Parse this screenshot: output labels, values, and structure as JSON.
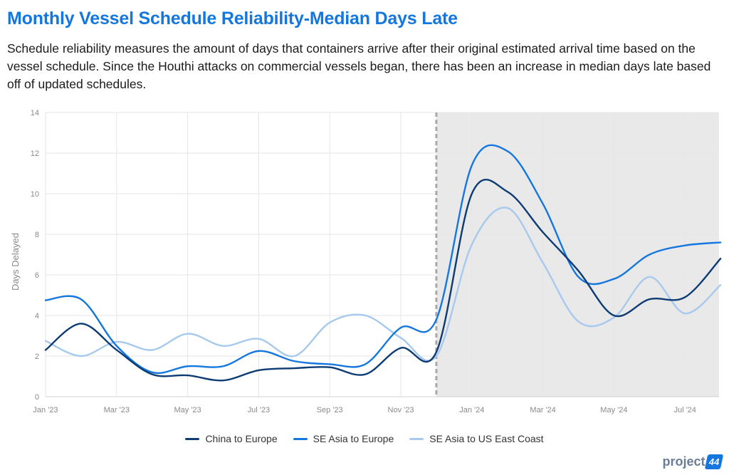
{
  "header": {
    "title": "Monthly Vessel Schedule Reliability-Median Days Late",
    "subtitle": "Schedule reliability measures the amount of days that containers arrive after their original estimated arrival time based on the vessel schedule. Since the Houthi attacks on commercial vessels began, there has been an increase in median days late based off of updated schedules."
  },
  "logo": {
    "text": "project",
    "badge": "44"
  },
  "chart_data": {
    "type": "line",
    "ylabel": "Days Delayed",
    "xlabel": "",
    "ylim": [
      0,
      14
    ],
    "yticks": [
      0,
      2,
      4,
      6,
      8,
      10,
      12,
      14
    ],
    "xticks": [
      "Jan '23",
      "Mar '23",
      "May '23",
      "Jul '23",
      "Sep '23",
      "Nov '23",
      "Jan '24",
      "Mar '24",
      "May '24",
      "Jul '24"
    ],
    "x": [
      "2023-01",
      "2023-02",
      "2023-03",
      "2023-04",
      "2023-05",
      "2023-06",
      "2023-07",
      "2023-08",
      "2023-09",
      "2023-10",
      "2023-11",
      "2023-12",
      "2024-01",
      "2024-02",
      "2024-03",
      "2024-04",
      "2024-05",
      "2024-06",
      "2024-07",
      "2024-08"
    ],
    "grid": true,
    "legend": "bottom",
    "marker_date": "2023-12-01",
    "shaded_region": [
      "2023-12-01",
      "2024-08-01"
    ],
    "series": [
      {
        "name": "China to Europe",
        "color": "#0d3b73",
        "values": [
          2.3,
          3.6,
          2.3,
          1.1,
          1.05,
          0.8,
          1.3,
          1.4,
          1.45,
          1.1,
          2.4,
          2.2,
          10.0,
          10.1,
          8.1,
          6.2,
          4.0,
          4.8,
          4.9,
          6.8
        ]
      },
      {
        "name": "SE Asia to Europe",
        "color": "#1477e0",
        "values": [
          4.75,
          4.8,
          2.5,
          1.2,
          1.5,
          1.5,
          2.25,
          1.75,
          1.6,
          1.6,
          3.4,
          3.8,
          11.4,
          12.1,
          9.5,
          5.9,
          5.8,
          7.0,
          7.45,
          7.6
        ]
      },
      {
        "name": "SE Asia to US East Coast",
        "color": "#a7c9ee",
        "values": [
          2.75,
          2.0,
          2.7,
          2.3,
          3.1,
          2.5,
          2.85,
          2.0,
          3.65,
          4.0,
          2.9,
          2.0,
          7.5,
          9.3,
          6.6,
          3.7,
          3.9,
          5.9,
          4.1,
          5.5
        ]
      }
    ]
  }
}
